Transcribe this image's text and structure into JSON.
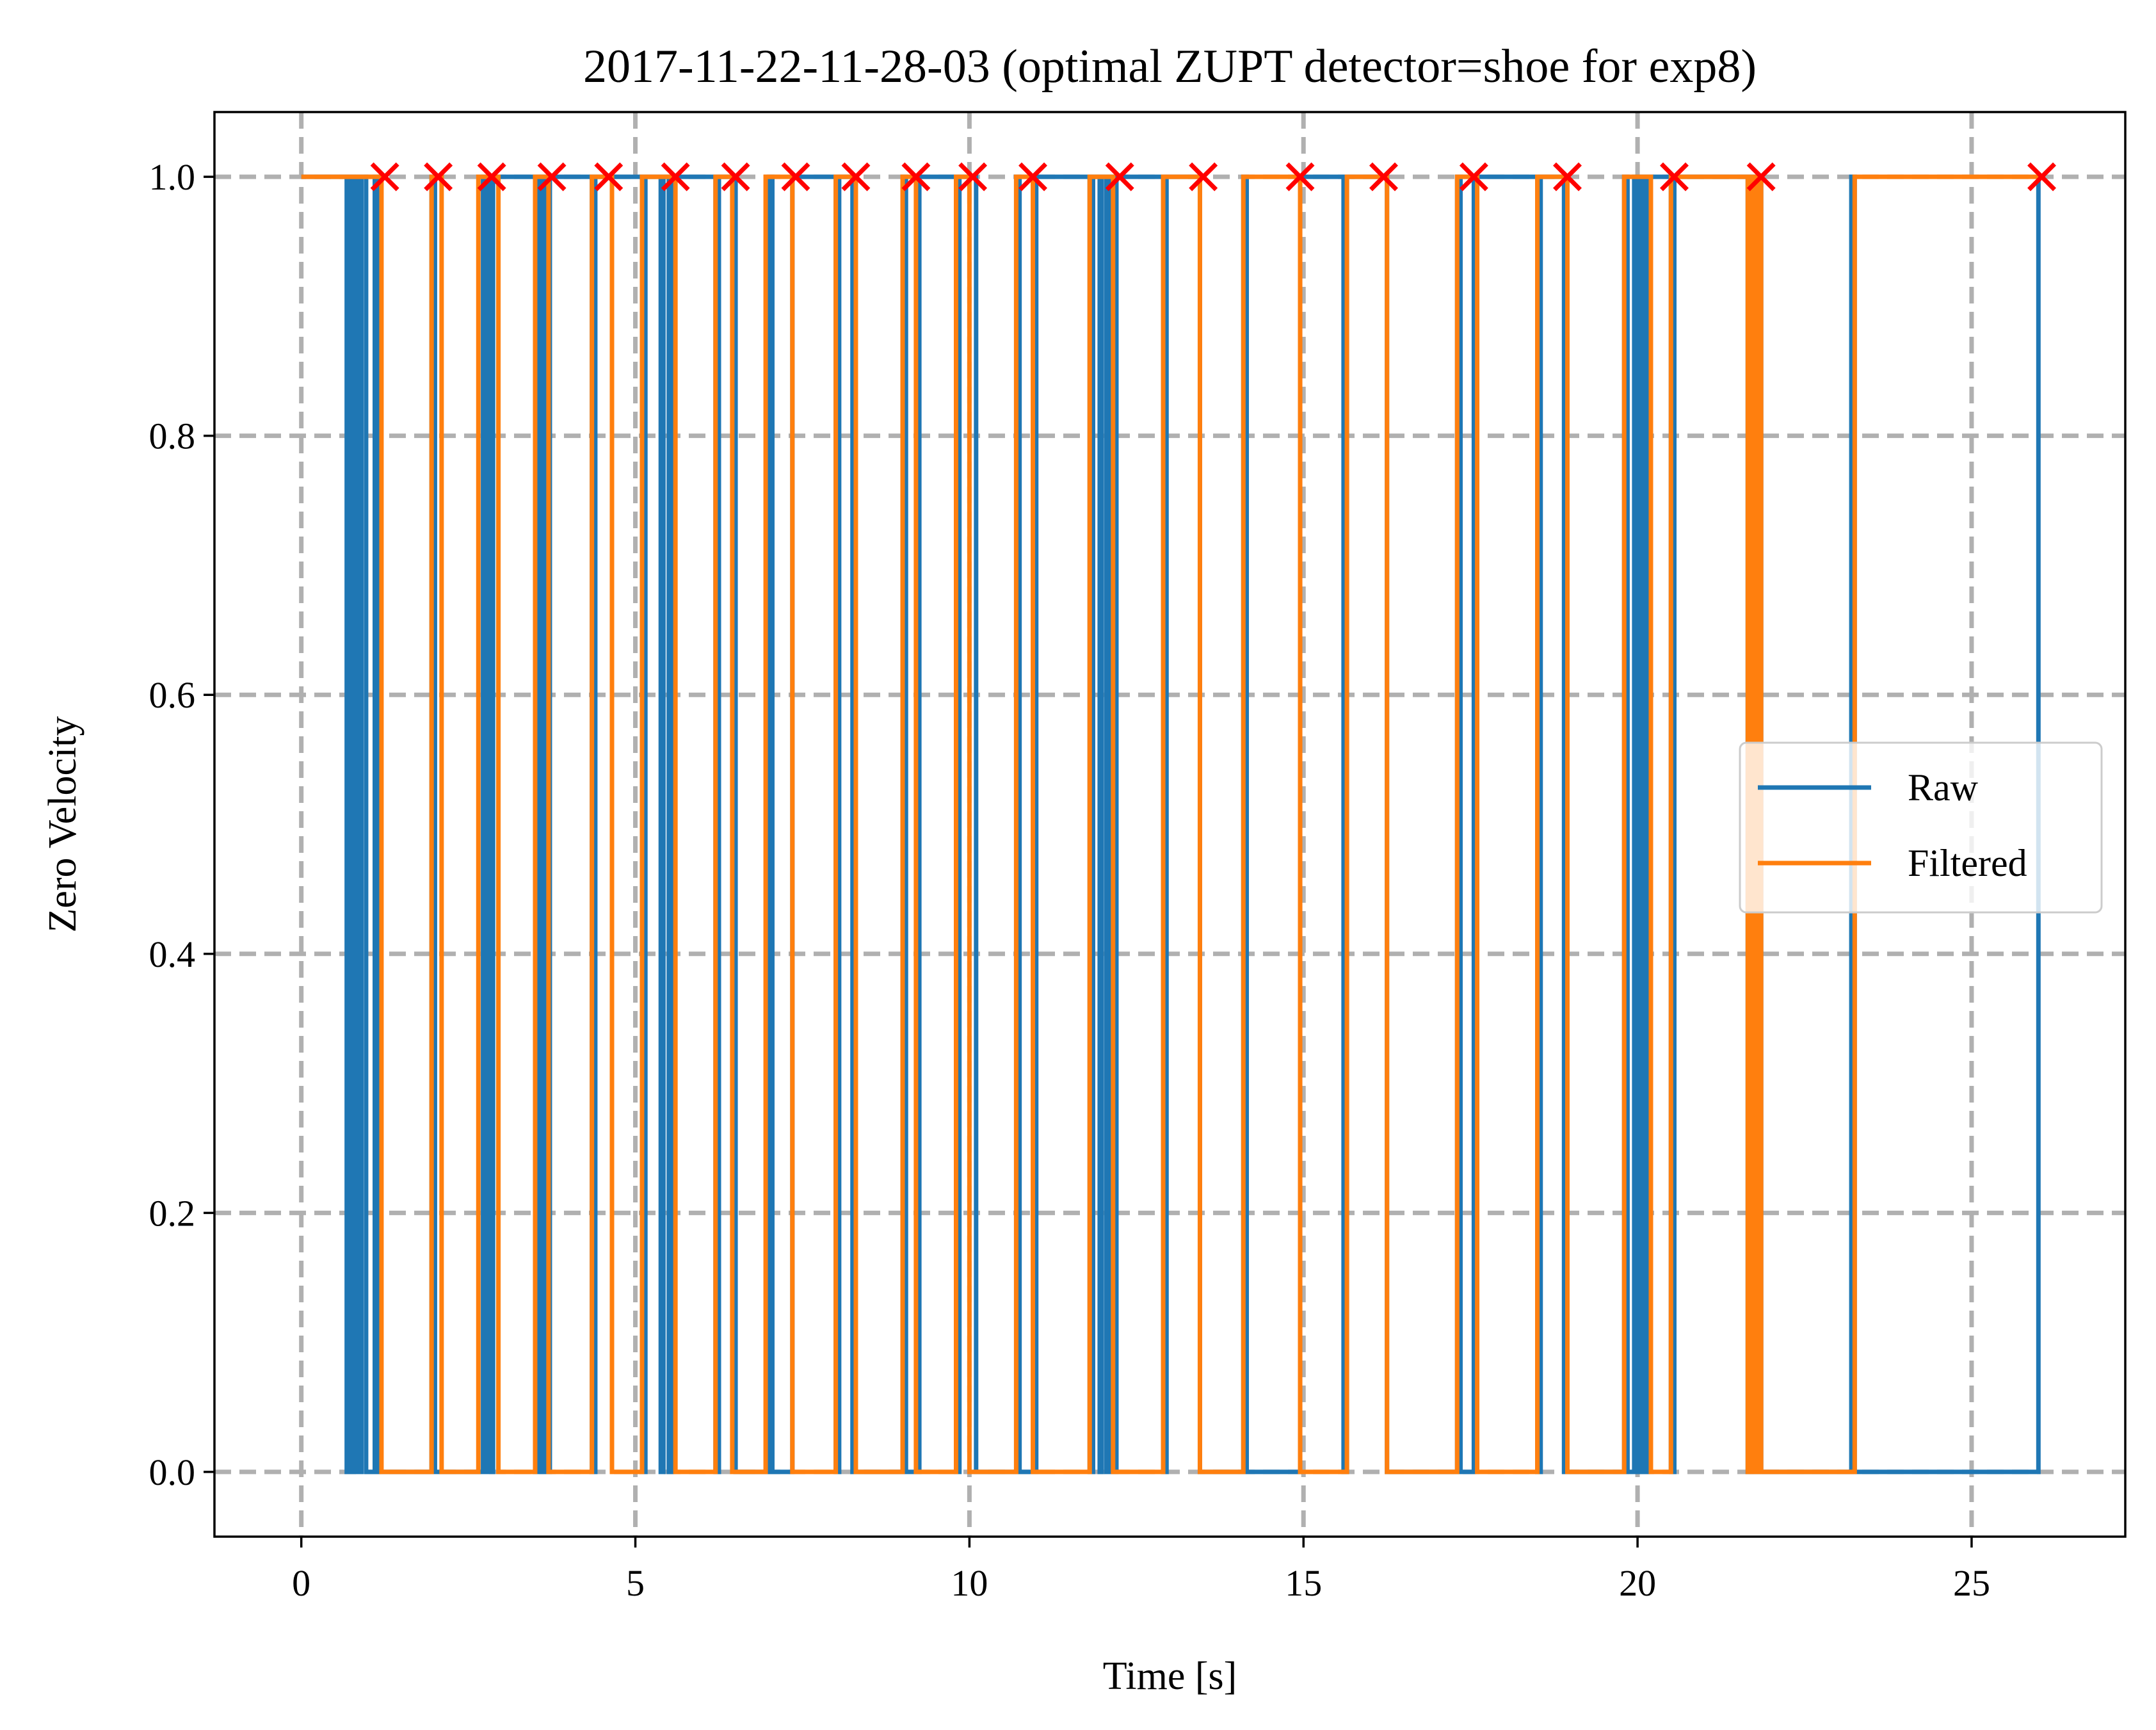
{
  "chart_data": {
    "type": "line",
    "title": "2017-11-22-11-28-03 (optimal ZUPT detector=shoe for exp8)",
    "xlabel": "Time [s]",
    "ylabel": "Zero Velocity",
    "xlim": [
      -1.3,
      27.3
    ],
    "ylim": [
      -0.05,
      1.05
    ],
    "xticks": [
      0,
      5,
      10,
      15,
      20,
      25
    ],
    "xtick_labels": [
      "0",
      "5",
      "10",
      "15",
      "20",
      "25"
    ],
    "yticks": [
      0.0,
      0.2,
      0.4,
      0.6,
      0.8,
      1.0
    ],
    "ytick_labels": [
      "0.0",
      "0.2",
      "0.4",
      "0.6",
      "0.8",
      "1.0"
    ],
    "grid": true,
    "legend_position": "center right",
    "series": [
      {
        "name": "Raw",
        "color": "#1f77b4",
        "style": "step",
        "x": [
          0,
          0.68,
          0.7,
          0.76,
          0.78,
          0.83,
          0.85,
          0.88,
          0.9,
          0.97,
          1.1,
          1.15,
          1.95,
          2.0,
          2.72,
          2.74,
          2.79,
          2.84,
          2.87,
          3.5,
          3.55,
          3.6,
          3.65,
          3.68,
          3.72,
          4.35,
          4.4,
          5.1,
          5.15,
          5.38,
          5.42,
          5.5,
          5.55,
          6.2,
          6.25,
          6.5,
          7.0,
          7.05,
          7.35,
          8.0,
          8.05,
          8.25,
          9.0,
          9.05,
          9.25,
          9.8,
          9.85,
          10.1,
          10.7,
          10.75,
          11.0,
          11.8,
          11.85,
          11.95,
          11.98,
          12.05,
          12.1,
          12.15,
          12.2,
          12.9,
          12.95,
          13.45,
          14.1,
          14.15,
          14.95,
          15.6,
          15.65,
          16.25,
          17.3,
          17.35,
          17.55,
          18.5,
          18.55,
          18.9,
          19.8,
          19.85,
          19.95,
          19.98,
          20.02,
          20.05,
          20.08,
          20.12,
          20.15,
          20.5,
          20.55,
          21.65,
          21.7,
          21.72,
          21.75,
          21.78,
          21.82,
          21.85,
          23.2,
          23.25,
          26.0
        ],
        "y": [
          1,
          0,
          1,
          0,
          1,
          0,
          1,
          0,
          1,
          0,
          1,
          0,
          1,
          0,
          1,
          0,
          1,
          0,
          1,
          0,
          1,
          0,
          1,
          0,
          1,
          0,
          1,
          0,
          1,
          0,
          1,
          0,
          1,
          0,
          1,
          0,
          1,
          0,
          1,
          0,
          1,
          0,
          1,
          0,
          1,
          0,
          1,
          0,
          1,
          0,
          1,
          0,
          1,
          0,
          1,
          0,
          1,
          0,
          1,
          0,
          1,
          0,
          1,
          0,
          1,
          0,
          1,
          0,
          1,
          0,
          1,
          0,
          1,
          0,
          1,
          0,
          1,
          0,
          1,
          0,
          1,
          0,
          1,
          0,
          1,
          0,
          1,
          0,
          1,
          0,
          1,
          0,
          1,
          0,
          1
        ]
      },
      {
        "name": "Filtered",
        "color": "#ff7f0e",
        "style": "step",
        "x": [
          0,
          1.2,
          1.95,
          2.1,
          2.65,
          2.95,
          3.5,
          3.7,
          4.35,
          4.65,
          5.1,
          5.6,
          6.2,
          6.45,
          6.95,
          7.35,
          8.0,
          8.3,
          9.0,
          9.2,
          9.8,
          10.0,
          10.7,
          10.95,
          11.8,
          12.15,
          12.9,
          13.45,
          14.1,
          14.95,
          15.65,
          16.25,
          17.3,
          17.6,
          18.5,
          18.95,
          19.8,
          20.2,
          20.5,
          21.65,
          21.7,
          21.75,
          21.8,
          21.85,
          23.25,
          26.0
        ],
        "y": [
          1,
          0,
          1,
          0,
          1,
          0,
          1,
          0,
          1,
          0,
          1,
          0,
          1,
          0,
          1,
          0,
          1,
          0,
          1,
          0,
          1,
          0,
          1,
          0,
          1,
          0,
          1,
          0,
          1,
          0,
          1,
          0,
          1,
          0,
          1,
          0,
          1,
          0,
          1,
          0,
          1,
          0,
          1,
          0,
          1,
          1
        ]
      },
      {
        "name": "",
        "color": "#ff0000",
        "style": "marker-x",
        "x": [
          1.25,
          2.05,
          2.85,
          3.75,
          4.6,
          5.6,
          6.5,
          7.4,
          8.3,
          9.2,
          10.05,
          10.95,
          12.25,
          13.5,
          14.95,
          16.2,
          17.55,
          18.95,
          20.55,
          21.85,
          26.05
        ],
        "y": [
          1,
          1,
          1,
          1,
          1,
          1,
          1,
          1,
          1,
          1,
          1,
          1,
          1,
          1,
          1,
          1,
          1,
          1,
          1,
          1,
          1
        ]
      }
    ]
  }
}
